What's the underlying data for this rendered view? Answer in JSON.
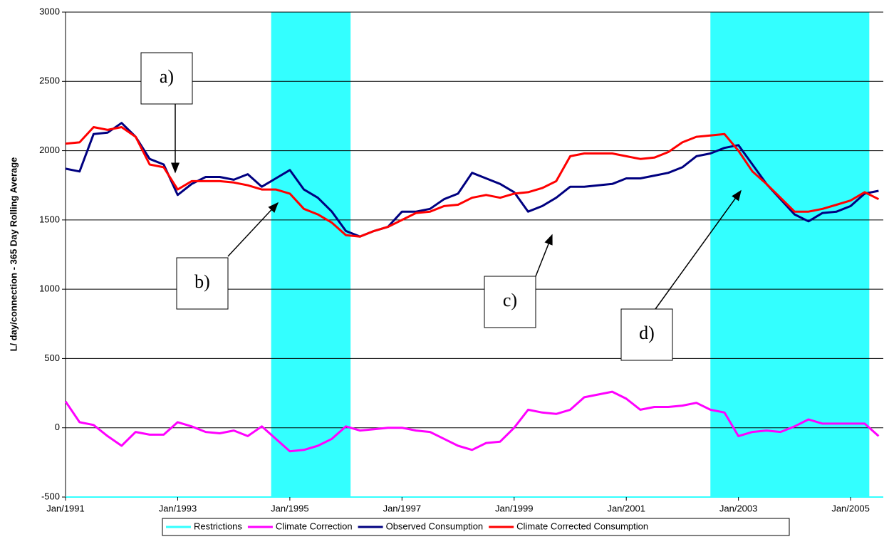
{
  "chart_data": {
    "type": "line",
    "y_label": "L/ day/connection - 365 Day Rolling Average",
    "x": [
      "1991-01",
      "1991-04",
      "1991-07",
      "1991-10",
      "1992-01",
      "1992-04",
      "1992-07",
      "1992-10",
      "1993-01",
      "1993-04",
      "1993-07",
      "1993-10",
      "1994-01",
      "1994-04",
      "1994-07",
      "1994-10",
      "1995-01",
      "1995-04",
      "1995-07",
      "1995-10",
      "1996-01",
      "1996-04",
      "1996-07",
      "1996-10",
      "1997-01",
      "1997-04",
      "1997-07",
      "1997-10",
      "1998-01",
      "1998-04",
      "1998-07",
      "1998-10",
      "1999-01",
      "1999-04",
      "1999-07",
      "1999-10",
      "2000-01",
      "2000-04",
      "2000-07",
      "2000-10",
      "2001-01",
      "2001-04",
      "2001-07",
      "2001-10",
      "2002-01",
      "2002-04",
      "2002-07",
      "2002-10",
      "2003-01",
      "2003-04",
      "2003-07",
      "2003-10",
      "2004-01",
      "2004-04",
      "2004-07",
      "2004-10",
      "2005-01",
      "2005-04",
      "2005-07"
    ],
    "series": [
      {
        "name": "Observed Consumption",
        "color": "#000080",
        "values": [
          1870,
          1850,
          2120,
          2130,
          2200,
          2100,
          1940,
          1900,
          1680,
          1760,
          1810,
          1810,
          1790,
          1830,
          1740,
          1800,
          1860,
          1720,
          1660,
          1560,
          1420,
          1380,
          1420,
          1450,
          1560,
          1560,
          1580,
          1650,
          1690,
          1840,
          1800,
          1760,
          1700,
          1560,
          1600,
          1660,
          1740,
          1740,
          1750,
          1760,
          1800,
          1800,
          1820,
          1840,
          1880,
          1960,
          1980,
          2020,
          2040,
          1900,
          1760,
          1650,
          1540,
          1490,
          1550,
          1560,
          1600,
          1690,
          1710
        ]
      },
      {
        "name": "Climate Correction",
        "color": "#ff00ff",
        "values": [
          190,
          40,
          20,
          -60,
          -130,
          -30,
          -50,
          -50,
          40,
          10,
          -30,
          -40,
          -20,
          -60,
          10,
          -80,
          -170,
          -160,
          -130,
          -80,
          10,
          -20,
          -10,
          0,
          0,
          -20,
          -30,
          -80,
          -130,
          -160,
          -110,
          -100,
          0,
          130,
          110,
          100,
          130,
          220,
          240,
          260,
          210,
          130,
          150,
          150,
          160,
          180,
          130,
          110,
          -60,
          -30,
          -20,
          -30,
          10,
          60,
          30,
          30,
          30,
          30,
          -60
        ]
      },
      {
        "name": "Climate Corrected Consumption",
        "color": "#ff0000",
        "values": [
          2050,
          2060,
          2170,
          2150,
          2170,
          2100,
          1900,
          1880,
          1720,
          1780,
          1780,
          1780,
          1770,
          1750,
          1720,
          1720,
          1690,
          1580,
          1540,
          1480,
          1390,
          1380,
          1420,
          1450,
          1500,
          1550,
          1560,
          1600,
          1610,
          1660,
          1680,
          1660,
          1690,
          1700,
          1730,
          1780,
          1960,
          1980,
          1980,
          1980,
          1960,
          1940,
          1950,
          1990,
          2060,
          2100,
          2110,
          2120,
          2000,
          1850,
          1760,
          1660,
          1560,
          1560,
          1580,
          1610,
          1640,
          1700,
          1650
        ]
      }
    ],
    "restrictions": {
      "name": "Restrictions",
      "color": "#33ffff",
      "periods": [
        [
          "1994-09",
          "1996-02"
        ],
        [
          "2002-07",
          "2005-05"
        ]
      ]
    },
    "legend_order": [
      1,
      0,
      2
    ],
    "xlim": [
      "1991-01",
      "2005-08"
    ],
    "xticks": [
      {
        "value": "1991-01",
        "label": "Jan/1991"
      },
      {
        "value": "1993-01",
        "label": "Jan/1993"
      },
      {
        "value": "1995-01",
        "label": "Jan/1995"
      },
      {
        "value": "1997-01",
        "label": "Jan/1997"
      },
      {
        "value": "1999-01",
        "label": "Jan/1999"
      },
      {
        "value": "2001-01",
        "label": "Jan/2001"
      },
      {
        "value": "2003-01",
        "label": "Jan/2003"
      },
      {
        "value": "2005-01",
        "label": "Jan/2005"
      }
    ],
    "ylim": [
      -500,
      3000
    ],
    "yticks": [
      -500,
      0,
      500,
      1000,
      1500,
      2000,
      2500,
      3000
    ],
    "grid": true,
    "legend": "bottom",
    "annotations": [
      "a)",
      "b)",
      "c)",
      "d)"
    ]
  }
}
